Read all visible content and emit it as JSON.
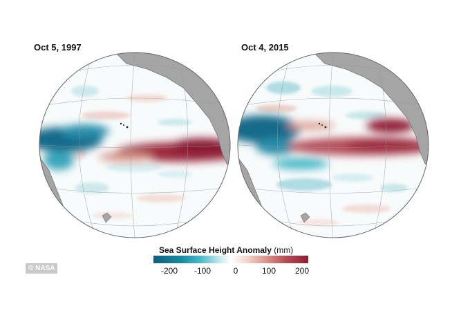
{
  "left_map": {
    "date": "Oct 5, 1997"
  },
  "right_map": {
    "date": "Oct 4, 2015"
  },
  "legend": {
    "title_bold": "Sea Surface Height Anomaly",
    "title_unit": "(mm)",
    "ticks": [
      "-200",
      "-100",
      "0",
      "100",
      "200"
    ],
    "colors": {
      "low": "#0f5e7d",
      "mid": "#ffffff",
      "high": "#8e1f35"
    }
  },
  "credit": "© NASA"
}
